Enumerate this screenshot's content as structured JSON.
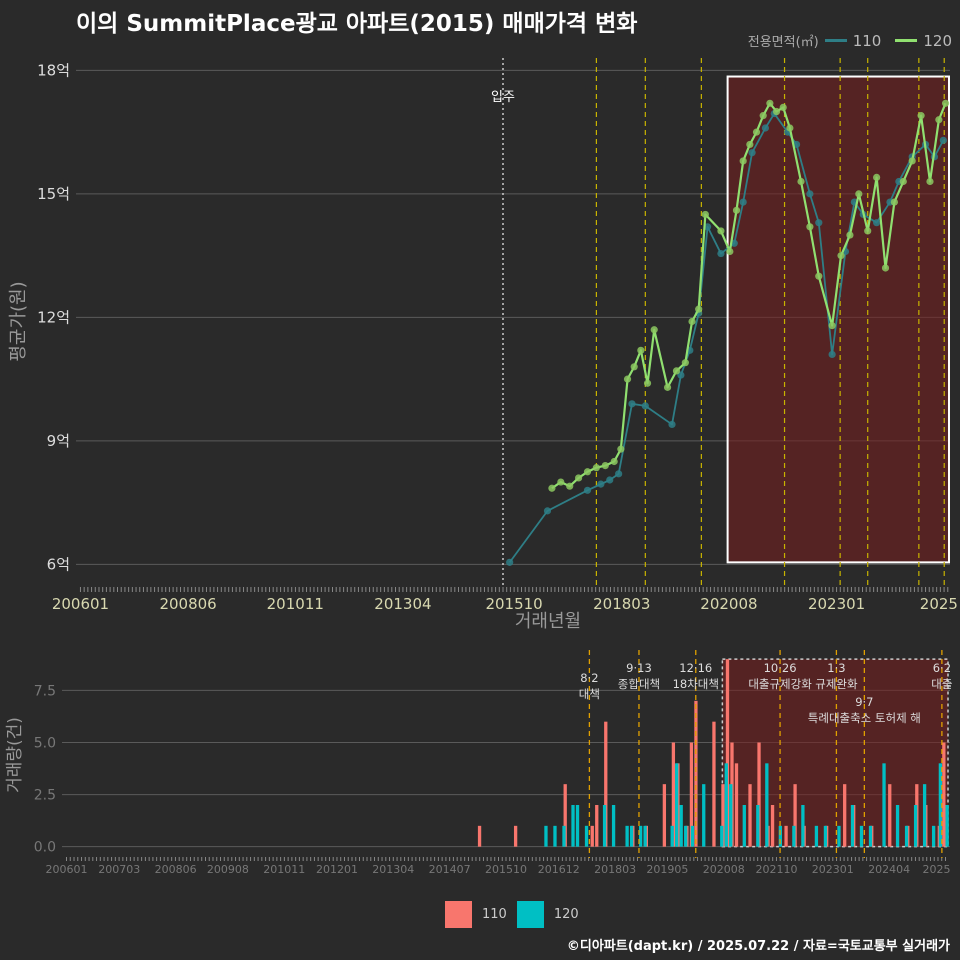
{
  "title": "이의 SummitPlace광교 아파트(2015) 매매가격 변화",
  "legend": {
    "title": "전용면적(㎡)",
    "items": [
      {
        "label": "110",
        "color": "#2e7e86"
      },
      {
        "label": "120",
        "color": "#90e070"
      }
    ]
  },
  "bottom_legend": [
    {
      "label": "110",
      "color": "#f8766d"
    },
    {
      "label": "120",
      "color": "#00bfc4"
    }
  ],
  "footer": "©디아파트(dapt.kr) / 2025.07.22 / 자료=국토교통부 실거래가",
  "chart_data": [
    {
      "type": "line",
      "xlabel": "거래년월",
      "ylabel": "평균가(원)",
      "x_tick_labels": [
        "200601",
        "200806",
        "201011",
        "201304",
        "201510",
        "201803",
        "202008",
        "202301",
        "2025"
      ],
      "y_tick_labels": [
        "6억",
        "9억",
        "12억",
        "15억",
        "18억"
      ],
      "ylim": [
        5.5,
        18.3
      ],
      "xlim": [
        2005.9,
        2025.55
      ],
      "move_in": {
        "label": "입주",
        "x": 2015.5
      },
      "policy_lines": [
        2017.6,
        2018.7,
        2019.96,
        2021.83,
        2023.08,
        2023.7,
        2024.85,
        2025.42
      ],
      "highlight_range": [
        2020.55,
        2025.55
      ],
      "highlight_y": [
        6.05,
        17.85
      ],
      "series": [
        {
          "name": "110",
          "x": [
            2015.65,
            2016.5,
            2017.4,
            2017.7,
            2017.9,
            2018.1,
            2018.4,
            2018.7,
            2019.3,
            2019.5,
            2019.7,
            2019.9,
            2020.1,
            2020.4,
            2020.7,
            2020.9,
            2021.1,
            2021.4,
            2021.6,
            2021.9,
            2022.1,
            2022.4,
            2022.6,
            2022.9,
            2023.2,
            2023.4,
            2023.6,
            2023.9,
            2024.2,
            2024.4,
            2024.7,
            2025.0,
            2025.2,
            2025.4
          ],
          "values": [
            6.05,
            7.3,
            7.8,
            7.95,
            8.05,
            8.2,
            9.9,
            9.85,
            9.4,
            10.6,
            11.2,
            12.1,
            14.2,
            13.55,
            13.8,
            14.8,
            16.0,
            16.6,
            16.95,
            16.5,
            16.2,
            15.0,
            14.3,
            11.1,
            13.6,
            14.8,
            14.5,
            14.3,
            14.8,
            15.3,
            15.9,
            16.2,
            15.9,
            16.3
          ]
        },
        {
          "name": "120",
          "x": [
            2016.6,
            2016.8,
            2017.0,
            2017.2,
            2017.4,
            2017.6,
            2017.8,
            2018.0,
            2018.15,
            2018.3,
            2018.45,
            2018.6,
            2018.75,
            2018.9,
            2019.2,
            2019.4,
            2019.6,
            2019.75,
            2019.9,
            2020.05,
            2020.4,
            2020.6,
            2020.75,
            2020.9,
            2021.05,
            2021.2,
            2021.35,
            2021.5,
            2021.65,
            2021.8,
            2021.95,
            2022.2,
            2022.4,
            2022.6,
            2022.9,
            2023.1,
            2023.3,
            2023.5,
            2023.7,
            2023.9,
            2024.1,
            2024.3,
            2024.5,
            2024.7,
            2024.9,
            2025.1,
            2025.3,
            2025.45
          ],
          "values": [
            7.85,
            8.0,
            7.9,
            8.1,
            8.25,
            8.35,
            8.4,
            8.5,
            8.8,
            10.5,
            10.8,
            11.2,
            10.4,
            11.7,
            10.3,
            10.7,
            10.9,
            11.9,
            12.2,
            14.5,
            14.1,
            13.6,
            14.6,
            15.8,
            16.2,
            16.5,
            16.9,
            17.2,
            17.0,
            17.1,
            16.6,
            15.3,
            14.2,
            13.0,
            11.8,
            13.5,
            14.0,
            15.0,
            14.1,
            15.4,
            13.2,
            14.8,
            15.3,
            15.8,
            16.9,
            15.3,
            16.8,
            17.2
          ]
        }
      ]
    },
    {
      "type": "bar",
      "ylabel": "거래량(건)",
      "x_tick_labels": [
        "200601",
        "200703",
        "200806",
        "200908",
        "201011",
        "201201",
        "201304",
        "201407",
        "201510",
        "201612",
        "201803",
        "201905",
        "202008",
        "202110",
        "202301",
        "202404",
        "2025"
      ],
      "y_tick_labels": [
        "0.0",
        "2.5",
        "5.0",
        "7.5"
      ],
      "ylim": [
        -0.4,
        9.2
      ],
      "policy_labels": [
        {
          "x": 2017.6,
          "label": "8·2 대책",
          "level": 2
        },
        {
          "x": 2018.7,
          "label": "9·13 종합대책",
          "level": 1
        },
        {
          "x": 2019.96,
          "label": "12·16 18차대책",
          "level": 1
        },
        {
          "x": 2021.83,
          "label": "10·26 대출규제강화",
          "level": 1
        },
        {
          "x": 2023.08,
          "label": "1·3 규제완화",
          "level": 1
        },
        {
          "x": 2023.7,
          "label": "9·7 특례대출축소 토허제 해",
          "level": 3
        },
        {
          "x": 2025.42,
          "label": "6·2 대출",
          "level": 1
        }
      ],
      "series": [
        {
          "name": "110",
          "x": [
            2015.2,
            2016.0,
            2017.1,
            2017.7,
            2017.8,
            2018.0,
            2018.6,
            2018.9,
            2019.3,
            2019.5,
            2019.6,
            2019.8,
            2019.9,
            2020.0,
            2020.4,
            2020.6,
            2020.7,
            2020.8,
            2020.9,
            2021.2,
            2021.4,
            2021.6,
            2021.7,
            2022.0,
            2022.2,
            2022.4,
            2022.9,
            2023.3,
            2023.5,
            2023.9,
            2024.3,
            2024.7,
            2024.9,
            2025.1,
            2025.4,
            2025.5
          ],
          "values": [
            1,
            1,
            3,
            1,
            2,
            6,
            1,
            1,
            3,
            5,
            4,
            1,
            5,
            7,
            6,
            3,
            9,
            5,
            4,
            3,
            5,
            1,
            2,
            1,
            3,
            1,
            1,
            3,
            2,
            1,
            3,
            1,
            3,
            2,
            1,
            5
          ]
        },
        {
          "name": "120",
          "x": [
            2016.6,
            2016.8,
            2017.0,
            2017.2,
            2017.3,
            2017.5,
            2017.9,
            2018.1,
            2018.4,
            2018.5,
            2018.7,
            2018.8,
            2019.4,
            2019.5,
            2019.6,
            2019.7,
            2019.85,
            2020.1,
            2020.5,
            2020.6,
            2020.7,
            2021.0,
            2021.3,
            2021.5,
            2021.8,
            2022.1,
            2022.3,
            2022.6,
            2022.8,
            2023.1,
            2023.4,
            2023.6,
            2023.8,
            2024.1,
            2024.4,
            2024.6,
            2024.8,
            2025.0,
            2025.2,
            2025.35,
            2025.5
          ],
          "values": [
            1,
            1,
            1,
            2,
            2,
            1,
            2,
            2,
            1,
            1,
            1,
            1,
            1,
            4,
            2,
            1,
            1,
            3,
            1,
            4,
            3,
            2,
            2,
            4,
            1,
            1,
            2,
            1,
            1,
            1,
            2,
            1,
            1,
            4,
            2,
            1,
            2,
            3,
            1,
            4,
            2
          ]
        }
      ]
    }
  ]
}
